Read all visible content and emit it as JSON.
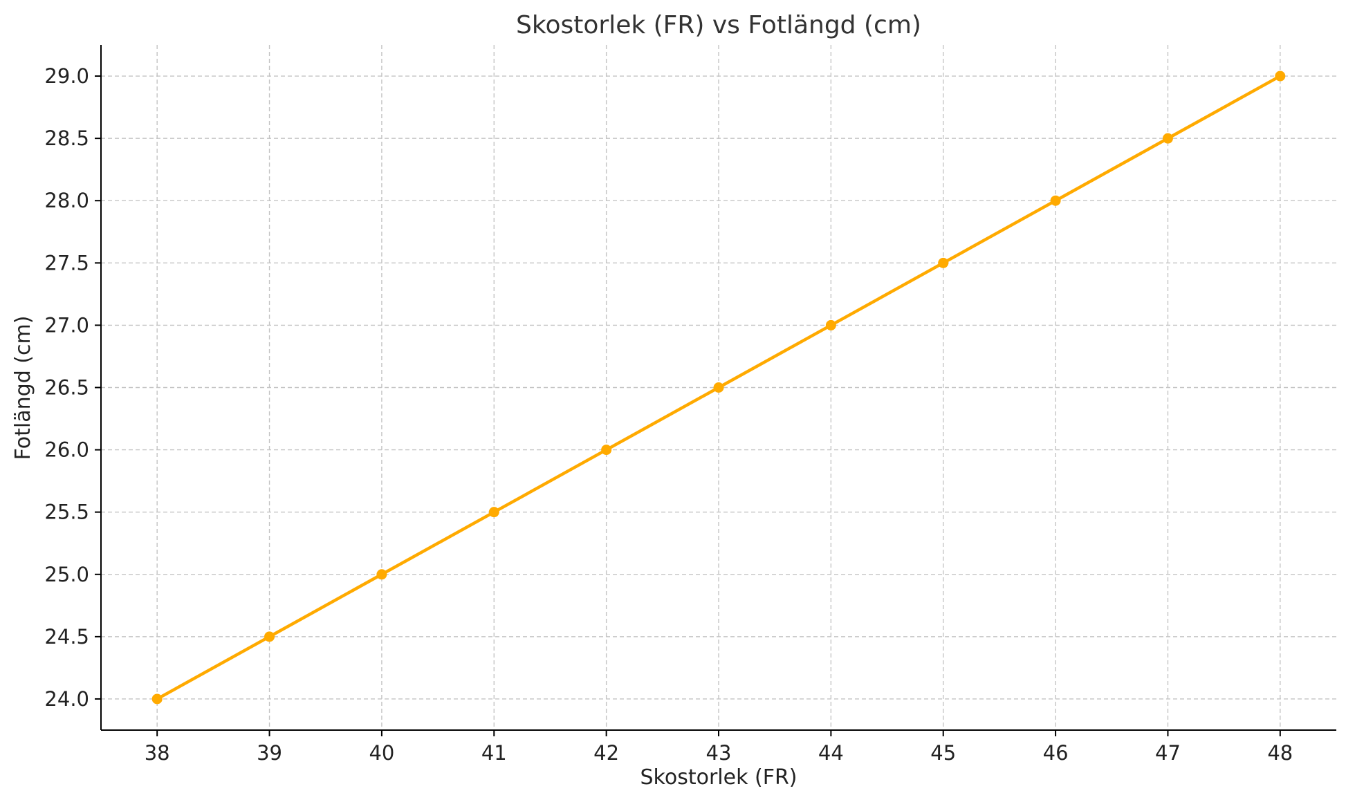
{
  "chart_data": {
    "type": "line",
    "title": "Skostorlek (FR) vs Fotlängd (cm)",
    "xlabel": "Skostorlek (FR)",
    "ylabel": "Fotlängd (cm)",
    "x": [
      38,
      39,
      40,
      41,
      42,
      43,
      44,
      45,
      46,
      47,
      48
    ],
    "series": [
      {
        "values": [
          24.0,
          24.5,
          25.0,
          25.5,
          26.0,
          26.5,
          27.0,
          27.5,
          28.0,
          28.5,
          29.0
        ],
        "color": "#FFAA00",
        "marker": "circle"
      }
    ],
    "xlim": [
      37.5,
      48.5
    ],
    "ylim": [
      23.75,
      29.25
    ],
    "xticks": [
      "38",
      "39",
      "40",
      "41",
      "42",
      "43",
      "44",
      "45",
      "46",
      "47",
      "48"
    ],
    "yticks": [
      "24.0",
      "24.5",
      "25.0",
      "25.5",
      "26.0",
      "26.5",
      "27.0",
      "27.5",
      "28.0",
      "28.5",
      "29.0"
    ],
    "grid": true,
    "legend": "none"
  }
}
